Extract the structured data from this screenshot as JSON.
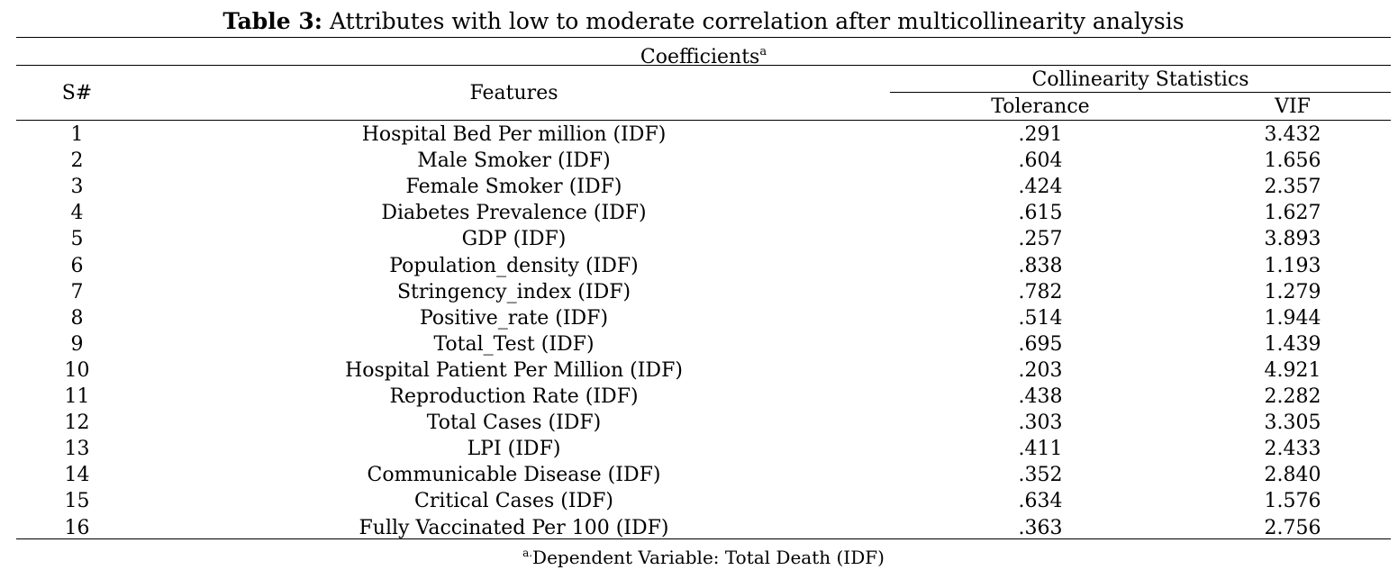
{
  "caption": {
    "label": "Table 3:",
    "text": "Attributes with low to moderate correlation after multicollinearity analysis"
  },
  "header": {
    "coefficients": "Coefficients",
    "coefficients_sup": "a",
    "sn": "S#",
    "features": "Features",
    "collinearity": "Collinearity Statistics",
    "tolerance": "Tolerance",
    "vif": "VIF"
  },
  "rows": [
    {
      "sn": "1",
      "feature": "Hospital Bed Per million (IDF)",
      "tolerance": ".291",
      "vif": "3.432"
    },
    {
      "sn": "2",
      "feature": "Male Smoker (IDF)",
      "tolerance": ".604",
      "vif": "1.656"
    },
    {
      "sn": "3",
      "feature": "Female Smoker (IDF)",
      "tolerance": ".424",
      "vif": "2.357"
    },
    {
      "sn": "4",
      "feature": "Diabetes Prevalence (IDF)",
      "tolerance": ".615",
      "vif": "1.627"
    },
    {
      "sn": "5",
      "feature": "GDP (IDF)",
      "tolerance": ".257",
      "vif": "3.893"
    },
    {
      "sn": "6",
      "feature": "Population_density (IDF)",
      "tolerance": ".838",
      "vif": "1.193"
    },
    {
      "sn": "7",
      "feature": "Stringency_index (IDF)",
      "tolerance": ".782",
      "vif": "1.279"
    },
    {
      "sn": "8",
      "feature": "Positive_rate (IDF)",
      "tolerance": ".514",
      "vif": "1.944"
    },
    {
      "sn": "9",
      "feature": "Total_Test (IDF)",
      "tolerance": ".695",
      "vif": "1.439"
    },
    {
      "sn": "10",
      "feature": "Hospital Patient Per Million (IDF)",
      "tolerance": ".203",
      "vif": "4.921"
    },
    {
      "sn": "11",
      "feature": "Reproduction Rate (IDF)",
      "tolerance": ".438",
      "vif": "2.282"
    },
    {
      "sn": "12",
      "feature": "Total Cases (IDF)",
      "tolerance": ".303",
      "vif": "3.305"
    },
    {
      "sn": "13",
      "feature": "LPI (IDF)",
      "tolerance": ".411",
      "vif": "2.433"
    },
    {
      "sn": "14",
      "feature": "Communicable Disease (IDF)",
      "tolerance": ".352",
      "vif": "2.840"
    },
    {
      "sn": "15",
      "feature": "Critical Cases (IDF)",
      "tolerance": ".634",
      "vif": "1.576"
    },
    {
      "sn": "16",
      "feature": "Fully Vaccinated Per 100 (IDF)",
      "tolerance": ".363",
      "vif": "2.756"
    }
  ],
  "footnote": {
    "sup": "a.",
    "text": "Dependent Variable: Total Death (IDF)"
  }
}
